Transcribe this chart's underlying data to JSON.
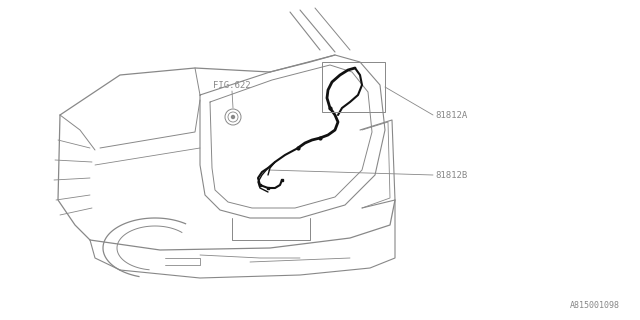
{
  "bg_color": "#ffffff",
  "line_color": "#888888",
  "thin_color": "#aaaaaa",
  "dark_line_color": "#111111",
  "text_color": "#888888",
  "label_81812A": "81812A",
  "label_81812B": "81812B",
  "label_fig622": "FIG.622",
  "ref_code": "A815001098",
  "font_size_labels": 6.5,
  "font_size_ref": 6
}
